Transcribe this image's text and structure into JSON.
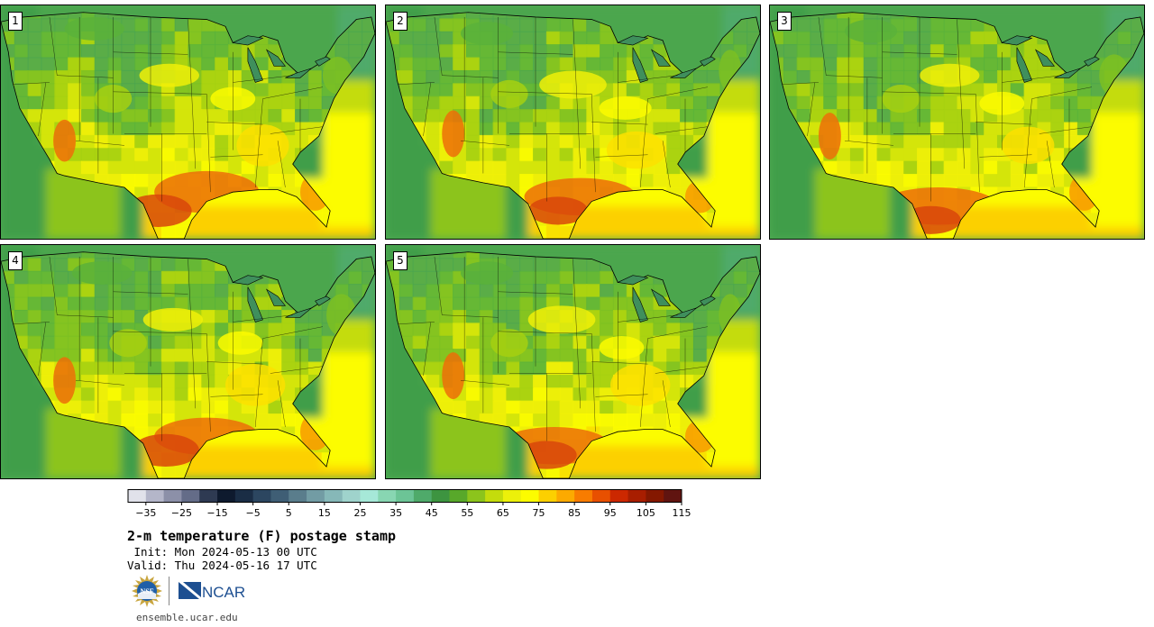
{
  "title": "2-m temperature (F) postage stamp",
  "init_line": " Init: Mon 2024-05-13 00 UTC",
  "valid_line": "Valid: Thu 2024-05-16 17 UTC",
  "url": "ensemble.ucar.edu",
  "logos": {
    "nsf_text": "NSF",
    "ncar_text": "NCAR"
  },
  "panels": [
    {
      "label": "1"
    },
    {
      "label": "2"
    },
    {
      "label": "3"
    },
    {
      "label": "4"
    },
    {
      "label": "5"
    }
  ],
  "colorbar": {
    "colors": [
      "#e1e2ea",
      "#b4b6c9",
      "#8c90a8",
      "#646c88",
      "#2e3a52",
      "#0e1a2e",
      "#1a2d45",
      "#2c4660",
      "#3f5e75",
      "#5a7d8c",
      "#729ca4",
      "#86b8b8",
      "#9fd3cc",
      "#a6e8d8",
      "#88d6b2",
      "#6cc496",
      "#4faa6a",
      "#3d9440",
      "#58a82a",
      "#8cc41c",
      "#c4dc0c",
      "#ecf00a",
      "#fcfc00",
      "#fcd000",
      "#fcaa00",
      "#f87c00",
      "#e85000",
      "#cc2800",
      "#a81e00",
      "#841800",
      "#601410"
    ],
    "tick_labels": [
      "−35",
      "−25",
      "−15",
      "−5",
      "5",
      "15",
      "25",
      "35",
      "45",
      "55",
      "65",
      "75",
      "85",
      "95",
      "105",
      "115"
    ],
    "tick_values": [
      -35,
      -25,
      -15,
      -5,
      5,
      15,
      25,
      35,
      45,
      55,
      65,
      75,
      85,
      95,
      105,
      115
    ],
    "min": -40,
    "max": 115
  }
}
